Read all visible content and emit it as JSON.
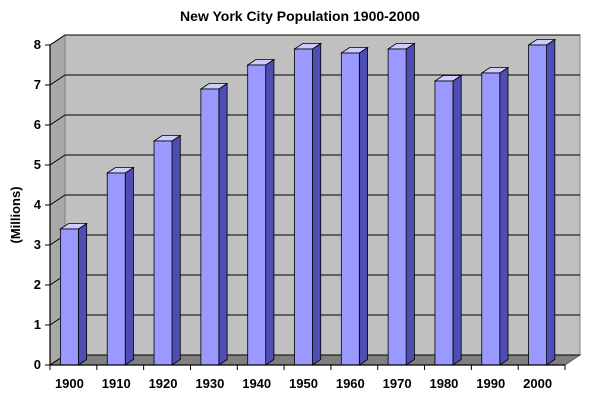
{
  "chart_data": {
    "type": "bar",
    "title": "New York City Population 1900-2000",
    "xlabel": "",
    "ylabel": "(Millions)",
    "categories": [
      "1900",
      "1910",
      "1920",
      "1930",
      "1940",
      "1950",
      "1960",
      "1970",
      "1980",
      "1990",
      "2000"
    ],
    "values": [
      3.4,
      4.8,
      5.6,
      6.9,
      7.5,
      7.9,
      7.8,
      7.9,
      7.1,
      7.3,
      8.0
    ],
    "ylim": [
      0,
      8
    ],
    "yticks": [
      "0",
      "1",
      "2",
      "3",
      "4",
      "5",
      "6",
      "7",
      "8"
    ],
    "grid": true,
    "legend": "none",
    "colors": {
      "bar_front": "#9999ff",
      "bar_side": "#4d4db3",
      "bar_top": "#ccccff",
      "wall": "#c0c0c0",
      "floor": "#808080",
      "gridline": "#000000"
    }
  }
}
